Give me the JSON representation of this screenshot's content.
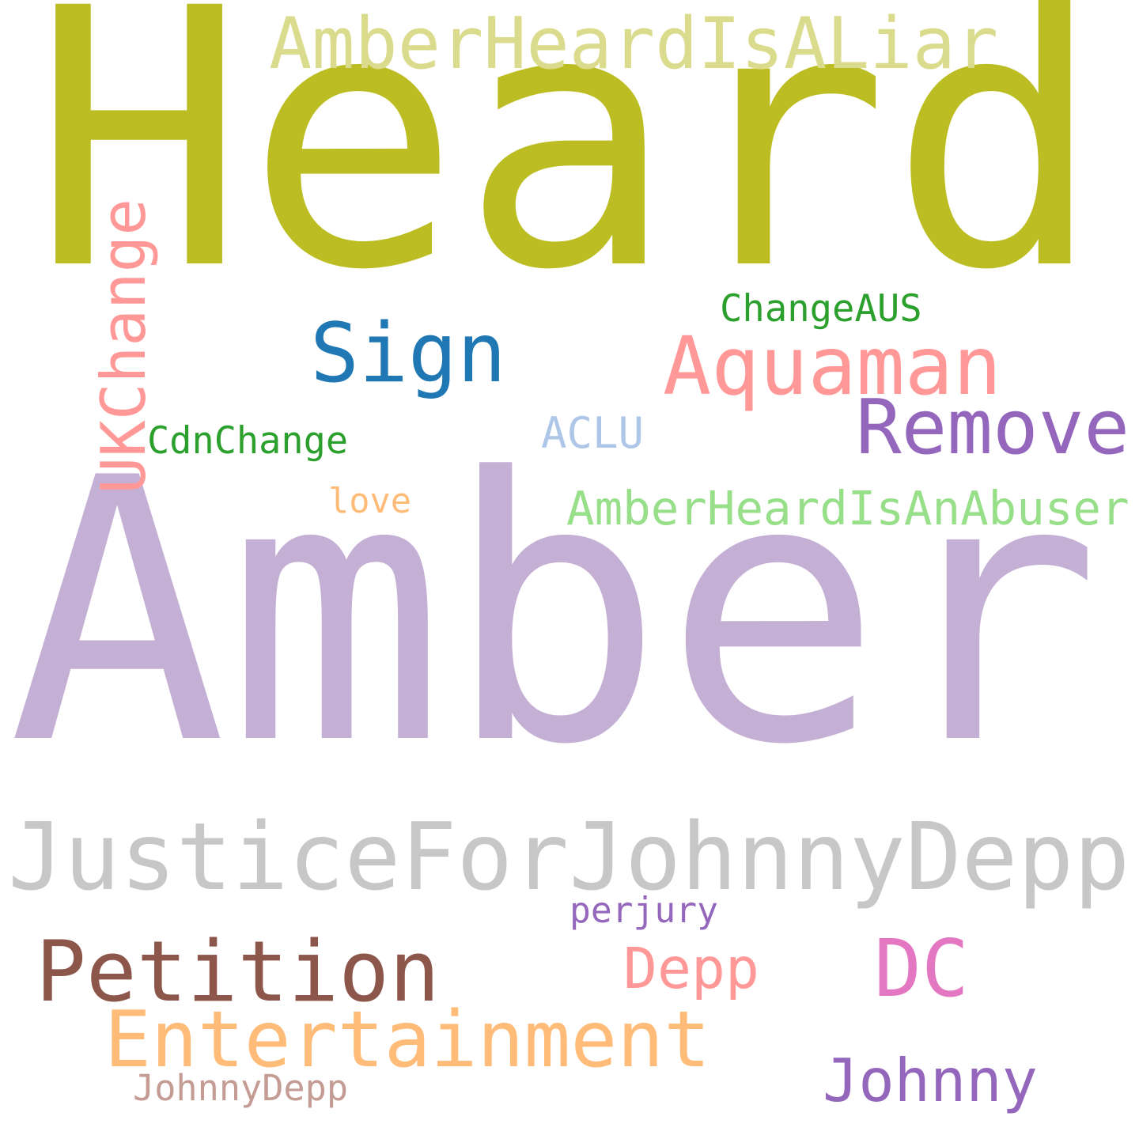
{
  "words": [
    {
      "id": "heard",
      "text": "Heard",
      "color": "#bcbd22",
      "rotated": false
    },
    {
      "id": "amber",
      "text": "Amber",
      "color": "#c5b0d5",
      "rotated": false
    },
    {
      "id": "justicefor-johnnydepp",
      "text": "JusticeForJohnnyDepp",
      "color": "#c7c7c7",
      "rotated": false
    },
    {
      "id": "amberheardisaliar",
      "text": "AmberHeardIsALiar",
      "color": "#dbdb8d",
      "rotated": false
    },
    {
      "id": "sign",
      "text": "Sign",
      "color": "#1f77b4",
      "rotated": false
    },
    {
      "id": "aquaman",
      "text": "Aquaman",
      "color": "#ff9896",
      "rotated": false
    },
    {
      "id": "remove",
      "text": "Remove",
      "color": "#9467bd",
      "rotated": false
    },
    {
      "id": "changeaus",
      "text": "ChangeAUS",
      "color": "#2ca02c",
      "rotated": false
    },
    {
      "id": "ukchange",
      "text": "UKChange",
      "color": "#ff9896",
      "rotated": true
    },
    {
      "id": "cdnchange",
      "text": "CdnChange",
      "color": "#2ca02c",
      "rotated": false
    },
    {
      "id": "aclu",
      "text": "ACLU",
      "color": "#aec7e8",
      "rotated": false
    },
    {
      "id": "love",
      "text": "love",
      "color": "#ffbb78",
      "rotated": false
    },
    {
      "id": "amberheardisanabuser",
      "text": "AmberHeardIsAnAbuser",
      "color": "#98df8a",
      "rotated": false
    },
    {
      "id": "perjury",
      "text": "perjury",
      "color": "#9467bd",
      "rotated": false
    },
    {
      "id": "petition",
      "text": "Petition",
      "color": "#8c564b",
      "rotated": false
    },
    {
      "id": "depp",
      "text": "Depp",
      "color": "#ff9896",
      "rotated": false
    },
    {
      "id": "dc",
      "text": "DC",
      "color": "#e377c2",
      "rotated": false
    },
    {
      "id": "entertainment",
      "text": "Entertainment",
      "color": "#ffbb78",
      "rotated": false
    },
    {
      "id": "johnny",
      "text": "Johnny",
      "color": "#9467bd",
      "rotated": false
    },
    {
      "id": "johnnydepp",
      "text": "JohnnyDepp",
      "color": "#c49c94",
      "rotated": false
    }
  ]
}
